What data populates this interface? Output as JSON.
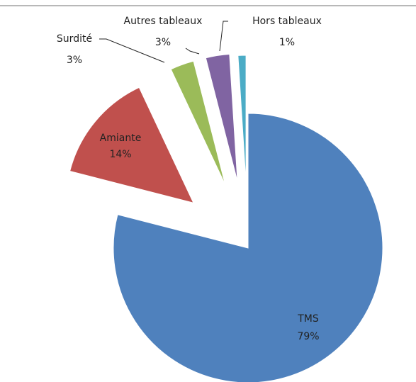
{
  "chart_data": {
    "type": "pie",
    "categories": [
      "TMS",
      "Amiante",
      "Surdité",
      "Autres tableaux",
      "Hors tableaux"
    ],
    "values": [
      79,
      14,
      3,
      3,
      1
    ],
    "value_labels": [
      "79%",
      "14%",
      "3%",
      "3%",
      "1%"
    ],
    "colors": [
      "#4f81bd",
      "#c0504d",
      "#9bbb59",
      "#8064a2",
      "#4bacc6"
    ]
  }
}
